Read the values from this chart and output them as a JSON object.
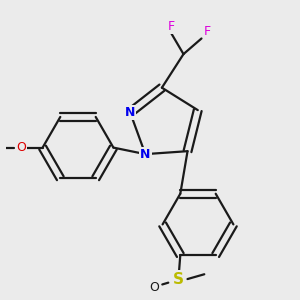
{
  "background_color": "#ebebeb",
  "bond_color": "#1a1a1a",
  "atom_colors": {
    "N": "#0000ee",
    "O_methoxy": "#dd0000",
    "O_sulfinyl": "#1a1a1a",
    "S": "#bbbb00",
    "F": "#dd00dd",
    "C": "#1a1a1a"
  },
  "figsize": [
    3.0,
    3.0
  ],
  "dpi": 100,
  "xlim": [
    -1.1,
    1.3
  ],
  "ylim": [
    -1.35,
    1.15
  ]
}
